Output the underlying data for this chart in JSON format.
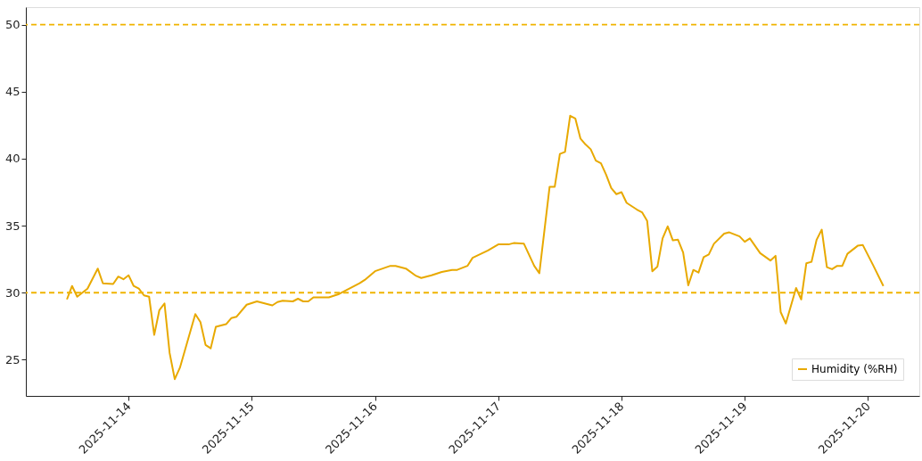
{
  "chart_data": {
    "type": "line",
    "x": [
      "2025-11-13T12:00",
      "2025-11-13T13:00",
      "2025-11-13T14:00",
      "2025-11-13T16:00",
      "2025-11-13T18:00",
      "2025-11-13T19:00",
      "2025-11-13T21:00",
      "2025-11-13T22:00",
      "2025-11-13T23:00",
      "2025-11-14T00:00",
      "2025-11-14T01:00",
      "2025-11-14T02:00",
      "2025-11-14T03:00",
      "2025-11-14T04:00",
      "2025-11-14T05:00",
      "2025-11-14T06:00",
      "2025-11-14T07:00",
      "2025-11-14T08:00",
      "2025-11-14T09:00",
      "2025-11-14T10:00",
      "2025-11-14T13:00",
      "2025-11-14T14:00",
      "2025-11-14T15:00",
      "2025-11-14T16:00",
      "2025-11-14T17:00",
      "2025-11-14T19:00",
      "2025-11-14T20:00",
      "2025-11-14T21:00",
      "2025-11-14T23:00",
      "2025-11-15T01:00",
      "2025-11-15T04:00",
      "2025-11-15T05:00",
      "2025-11-15T06:00",
      "2025-11-15T08:00",
      "2025-11-15T09:00",
      "2025-11-15T10:00",
      "2025-11-15T11:00",
      "2025-11-15T12:00",
      "2025-11-15T15:00",
      "2025-11-15T17:00",
      "2025-11-15T21:00",
      "2025-11-15T22:00",
      "2025-11-16T00:00",
      "2025-11-16T03:00",
      "2025-11-16T04:00",
      "2025-11-16T06:00",
      "2025-11-16T08:00",
      "2025-11-16T09:00",
      "2025-11-16T11:00",
      "2025-11-16T13:00",
      "2025-11-16T15:00",
      "2025-11-16T16:00",
      "2025-11-16T18:00",
      "2025-11-16T19:00",
      "2025-11-16T22:00",
      "2025-11-17T00:00",
      "2025-11-17T02:00",
      "2025-11-17T03:00",
      "2025-11-17T05:00",
      "2025-11-17T07:00",
      "2025-11-17T08:00",
      "2025-11-17T10:00",
      "2025-11-17T11:00",
      "2025-11-17T12:00",
      "2025-11-17T13:00",
      "2025-11-17T14:00",
      "2025-11-17T15:00",
      "2025-11-17T16:00",
      "2025-11-17T17:00",
      "2025-11-17T18:00",
      "2025-11-17T19:00",
      "2025-11-17T20:00",
      "2025-11-17T21:00",
      "2025-11-17T22:00",
      "2025-11-17T23:00",
      "2025-11-18T00:00",
      "2025-11-18T01:00",
      "2025-11-18T03:00",
      "2025-11-18T04:00",
      "2025-11-18T05:00",
      "2025-11-18T06:00",
      "2025-11-18T07:00",
      "2025-11-18T08:00",
      "2025-11-18T09:00",
      "2025-11-18T10:00",
      "2025-11-18T11:00",
      "2025-11-18T12:00",
      "2025-11-18T13:00",
      "2025-11-18T14:00",
      "2025-11-18T15:00",
      "2025-11-18T16:00",
      "2025-11-18T17:00",
      "2025-11-18T18:00",
      "2025-11-18T20:00",
      "2025-11-18T21:00",
      "2025-11-18T23:00",
      "2025-11-19T00:00",
      "2025-11-19T01:00",
      "2025-11-19T03:00",
      "2025-11-19T05:00",
      "2025-11-19T06:00",
      "2025-11-19T07:00",
      "2025-11-19T08:00",
      "2025-11-19T10:00",
      "2025-11-19T11:00",
      "2025-11-19T12:00",
      "2025-11-19T13:00",
      "2025-11-19T14:00",
      "2025-11-19T15:00",
      "2025-11-19T16:00",
      "2025-11-19T17:00",
      "2025-11-19T18:00",
      "2025-11-19T19:00",
      "2025-11-19T20:00",
      "2025-11-19T22:00",
      "2025-11-19T23:00",
      "2025-11-20T01:00",
      "2025-11-20T03:00"
    ],
    "series": [
      {
        "name": "Humidity (%RH)",
        "color": "#e8a900",
        "values": [
          29.5,
          30.5,
          29.7,
          30.3,
          31.8,
          30.7,
          30.65,
          31.2,
          31.0,
          31.3,
          30.5,
          30.3,
          29.8,
          29.7,
          26.85,
          28.7,
          29.2,
          25.5,
          23.55,
          24.4,
          28.4,
          27.8,
          26.1,
          25.85,
          27.45,
          27.65,
          28.1,
          28.2,
          29.1,
          29.35,
          29.05,
          29.3,
          29.4,
          29.35,
          29.55,
          29.35,
          29.35,
          29.65,
          29.65,
          29.9,
          30.7,
          30.95,
          31.6,
          32.0,
          32.0,
          31.8,
          31.25,
          31.1,
          31.3,
          31.55,
          31.7,
          31.7,
          32.0,
          32.6,
          33.15,
          33.6,
          33.6,
          33.7,
          33.65,
          32.0,
          31.45,
          37.9,
          37.9,
          40.35,
          40.5,
          43.2,
          43.0,
          41.5,
          41.05,
          40.7,
          39.85,
          39.65,
          38.8,
          37.8,
          37.35,
          37.5,
          36.7,
          36.2,
          36.0,
          35.35,
          31.6,
          31.95,
          34.05,
          34.95,
          33.9,
          33.95,
          33.0,
          30.55,
          31.7,
          31.5,
          32.65,
          32.85,
          33.65,
          34.4,
          34.5,
          34.2,
          33.8,
          34.05,
          32.95,
          32.4,
          32.75,
          28.55,
          27.7,
          30.35,
          29.5,
          32.2,
          32.3,
          33.95,
          34.7,
          31.9,
          31.75,
          32.0,
          32.0,
          32.9,
          33.5,
          33.55,
          32.05,
          30.5
        ]
      }
    ],
    "xlim": [
      "2025-11-13T04:00",
      "2025-11-20T10:00"
    ],
    "xticks": [
      {
        "value": "2025-11-14T00:00",
        "label": "2025-11-14"
      },
      {
        "value": "2025-11-15T00:00",
        "label": "2025-11-15"
      },
      {
        "value": "2025-11-16T00:00",
        "label": "2025-11-16"
      },
      {
        "value": "2025-11-17T00:00",
        "label": "2025-11-17"
      },
      {
        "value": "2025-11-18T00:00",
        "label": "2025-11-18"
      },
      {
        "value": "2025-11-19T00:00",
        "label": "2025-11-19"
      },
      {
        "value": "2025-11-20T00:00",
        "label": "2025-11-20"
      }
    ],
    "ylim": [
      22.3,
      51.3
    ],
    "yticks": [
      25,
      30,
      35,
      40,
      45,
      50
    ],
    "ref_lines": [
      {
        "axis": "y",
        "value": 30,
        "label": null,
        "color": "#f0b400",
        "line_style": "dashed"
      },
      {
        "axis": "y",
        "value": 50,
        "label": null,
        "color": "#f0b400",
        "line_style": "dashed"
      }
    ],
    "grid": false,
    "legend": "bottom right",
    "marker": "none",
    "line_style": "solid"
  }
}
